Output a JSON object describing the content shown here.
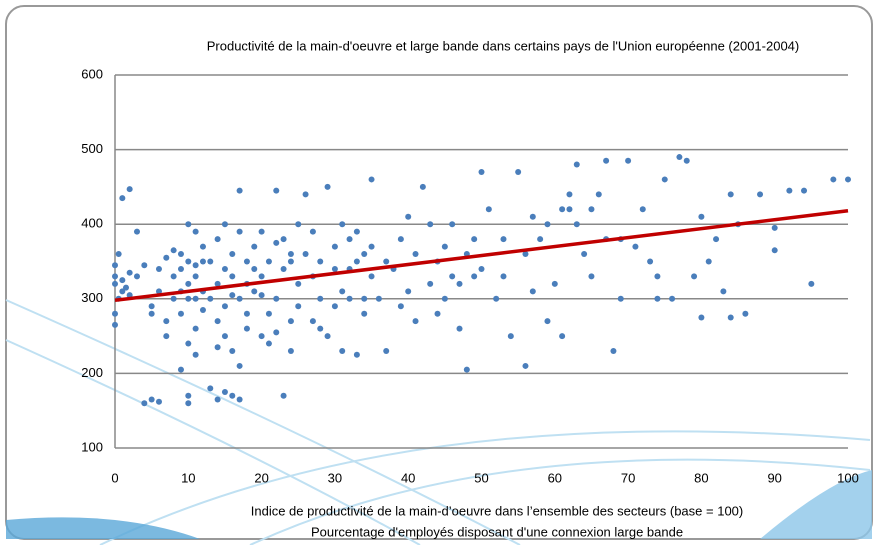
{
  "chart_data": {
    "type": "scatter",
    "title": "Productivité de la main-d'oeuvre et large bande dans certains pays de l'Union européenne (2001-2004)",
    "xlabel": [
      "Indice de productivité de la main-d’oeuvre dans l’ensemble des secteurs (base = 100)",
      "Pourcentage d'employés disposant d'une connexion large bande"
    ],
    "color": "#4a7ebb",
    "x": [
      0,
      0,
      0,
      0,
      0.5,
      1,
      2,
      1,
      1.5,
      2,
      0.5,
      1,
      2,
      0,
      4,
      5,
      6,
      4,
      3,
      5,
      6,
      7,
      8,
      8,
      6,
      7,
      5,
      8,
      7,
      3,
      9,
      10,
      10,
      9,
      10,
      11,
      9,
      10,
      11,
      12,
      10,
      11,
      9,
      10,
      11,
      12,
      12,
      10,
      11,
      9,
      12,
      11,
      13,
      14,
      15,
      16,
      17,
      13,
      14,
      15,
      16,
      17,
      18,
      14,
      15,
      16,
      17,
      13,
      14,
      15,
      16,
      17,
      18,
      15,
      16,
      18,
      14,
      17,
      18,
      19,
      20,
      21,
      22,
      23,
      24,
      20,
      21,
      22,
      23,
      24,
      25,
      19,
      20,
      21,
      22,
      23,
      24,
      25,
      20,
      22,
      25,
      24,
      19,
      26,
      27,
      28,
      29,
      30,
      31,
      32,
      33,
      34,
      35,
      27,
      28,
      29,
      30,
      31,
      32,
      33,
      34,
      35,
      26,
      28,
      30,
      32,
      31,
      33,
      34,
      35,
      27,
      36,
      37,
      38,
      39,
      40,
      41,
      42,
      43,
      44,
      45,
      46,
      47,
      48,
      49,
      50,
      37,
      39,
      41,
      43,
      45,
      47,
      49,
      40,
      44,
      46,
      48,
      50,
      51,
      52,
      53,
      54,
      55,
      56,
      57,
      58,
      59,
      60,
      61,
      62,
      63,
      64,
      65,
      66,
      67,
      68,
      69,
      70,
      53,
      57,
      59,
      61,
      63,
      65,
      67,
      69,
      62,
      56,
      72,
      73,
      74,
      75,
      76,
      77,
      78,
      79,
      80,
      81,
      82,
      83,
      84,
      85,
      86,
      88,
      90,
      90,
      92,
      94,
      95,
      98,
      100,
      80,
      84,
      71,
      74
    ],
    "values": [
      330,
      345,
      280,
      265,
      360,
      435,
      447,
      325,
      315,
      335,
      300,
      310,
      305,
      320,
      160,
      165,
      162,
      345,
      390,
      290,
      310,
      270,
      330,
      300,
      340,
      250,
      280,
      365,
      355,
      330,
      205,
      160,
      170,
      280,
      320,
      330,
      360,
      350,
      300,
      285,
      240,
      225,
      340,
      400,
      390,
      350,
      310,
      300,
      260,
      310,
      370,
      345,
      180,
      165,
      175,
      170,
      165,
      300,
      320,
      340,
      360,
      300,
      280,
      270,
      250,
      230,
      210,
      350,
      380,
      400,
      330,
      445,
      320,
      290,
      305,
      350,
      235,
      390,
      260,
      310,
      330,
      350,
      300,
      340,
      360,
      250,
      240,
      445,
      380,
      270,
      320,
      370,
      390,
      280,
      255,
      170,
      350,
      400,
      305,
      375,
      290,
      230,
      340,
      440,
      330,
      350,
      450,
      370,
      310,
      340,
      390,
      360,
      330,
      270,
      300,
      250,
      290,
      400,
      380,
      225,
      300,
      460,
      360,
      260,
      340,
      300,
      230,
      350,
      280,
      370,
      390,
      300,
      230,
      340,
      380,
      310,
      360,
      450,
      320,
      350,
      300,
      400,
      260,
      205,
      330,
      340,
      350,
      290,
      270,
      400,
      370,
      320,
      380,
      410,
      280,
      330,
      360,
      470,
      420,
      300,
      380,
      250,
      470,
      360,
      310,
      380,
      400,
      320,
      250,
      420,
      480,
      360,
      330,
      440,
      485,
      230,
      380,
      485,
      330,
      410,
      270,
      420,
      400,
      420,
      380,
      300,
      440,
      210,
      420,
      350,
      330,
      460,
      300,
      490,
      485,
      330,
      410,
      350,
      380,
      310,
      440,
      400,
      280,
      440,
      395,
      365,
      445,
      445,
      320,
      460,
      460,
      275,
      275,
      370,
      300
    ],
    "trendline": {
      "x": [
        0,
        100
      ],
      "values": [
        298,
        418
      ],
      "color": "#c00000"
    },
    "xlim": [
      0,
      100
    ],
    "xticks": [
      0,
      10,
      20,
      30,
      40,
      50,
      60,
      70,
      80,
      90,
      100
    ],
    "ylim": [
      100,
      600
    ],
    "yticks": [
      100,
      200,
      300,
      400,
      500,
      600
    ],
    "grid": true
  }
}
